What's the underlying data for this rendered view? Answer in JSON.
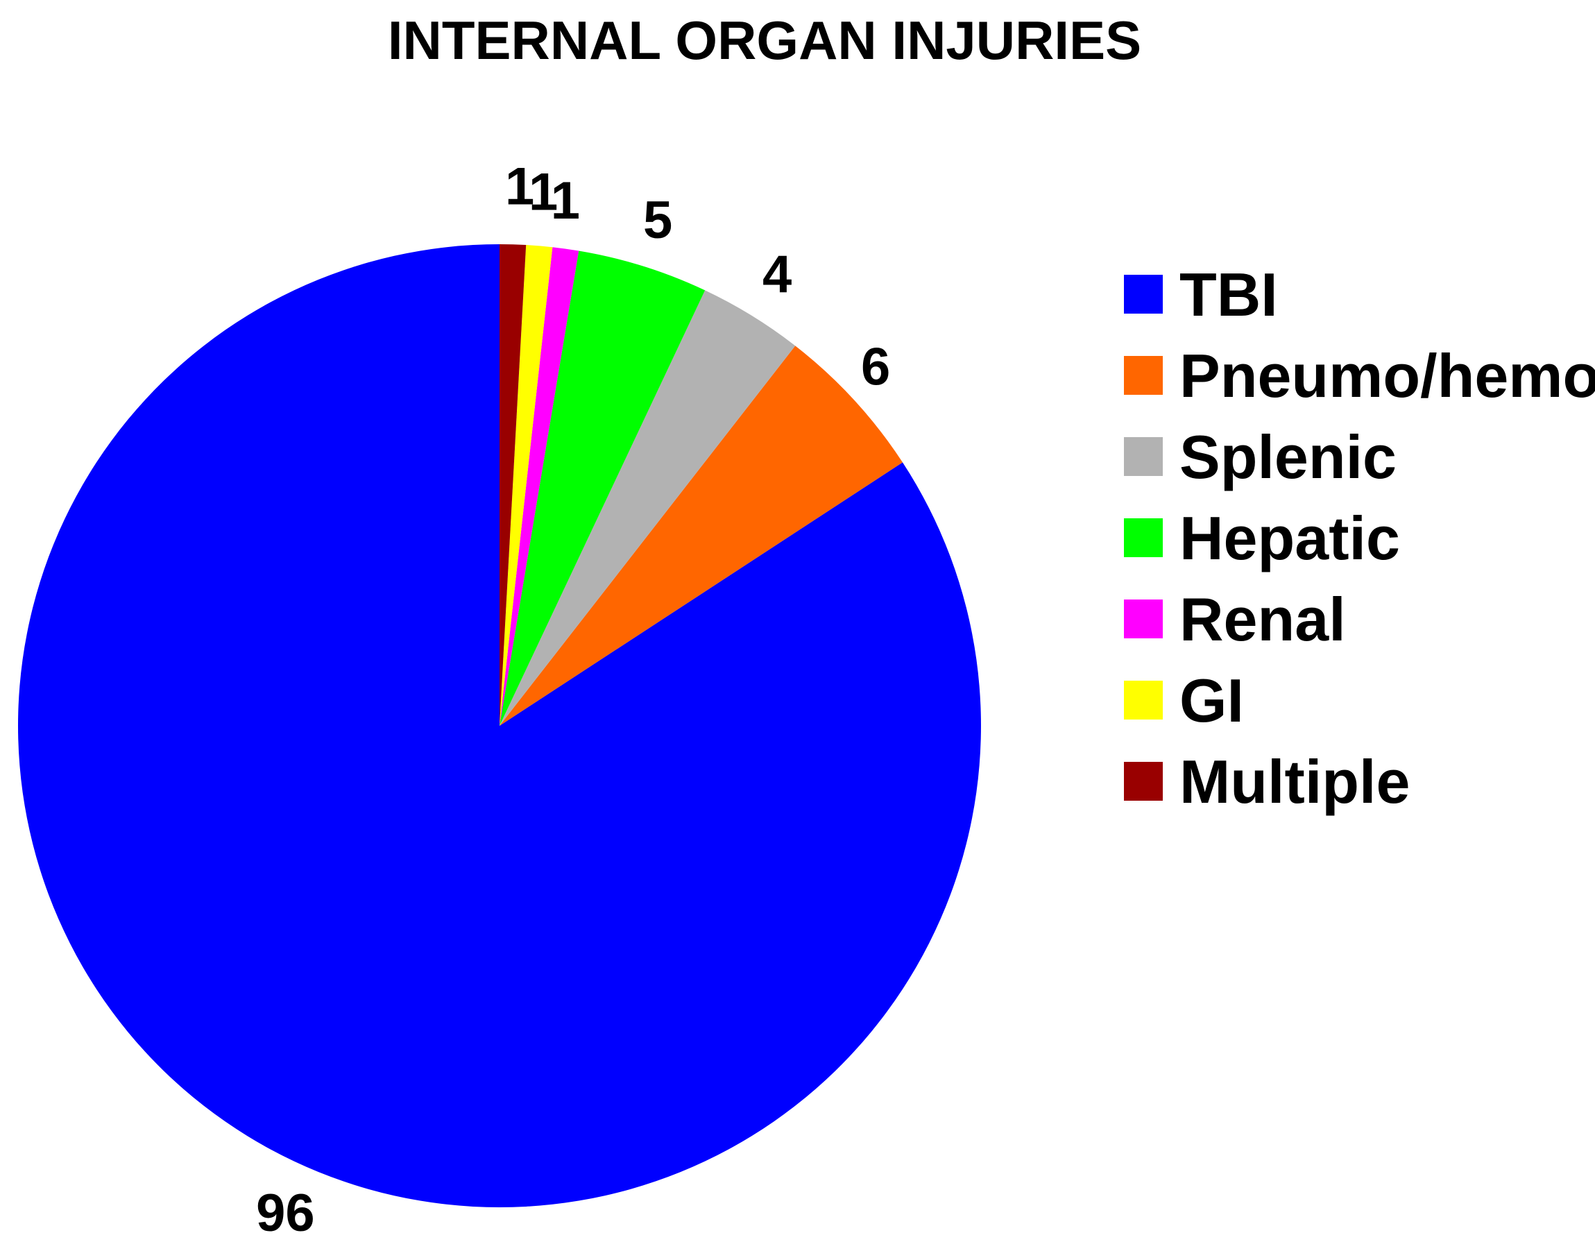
{
  "chart_data": {
    "type": "pie",
    "title": "INTERNAL ORGAN INJURIES",
    "start_angle_deg": 0,
    "direction": "counterclockwise",
    "legend_position": "right",
    "slices": [
      {
        "label": "TBI",
        "value": 96,
        "data_label": "96",
        "color": "#0000FF"
      },
      {
        "label": "Pneumo/hemo",
        "value": 6,
        "data_label": "6",
        "color": "#FF6600"
      },
      {
        "label": "Splenic",
        "value": 4,
        "data_label": "4",
        "color": "#B2B2B2"
      },
      {
        "label": "Hepatic",
        "value": 5,
        "data_label": "5",
        "color": "#00FF00"
      },
      {
        "label": "Renal",
        "value": 1,
        "data_label": "1",
        "color": "#FF00FF"
      },
      {
        "label": "GI",
        "value": 1,
        "data_label": "1",
        "color": "#FFFF00"
      },
      {
        "label": "Multiple",
        "value": 1,
        "data_label": "1",
        "color": "#990000"
      }
    ]
  }
}
